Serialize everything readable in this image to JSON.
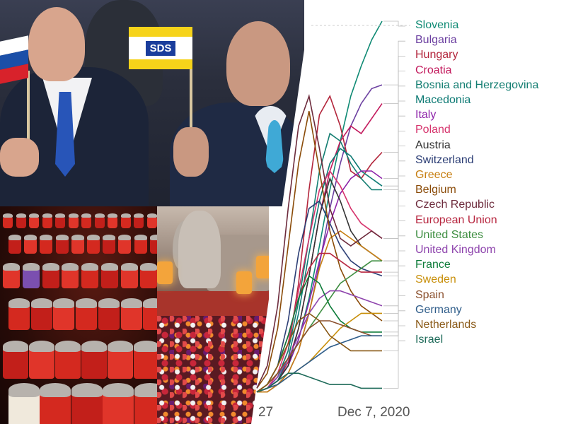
{
  "photo_top": {
    "flag_text": "SDS",
    "colors": {
      "slovenia_white": "#ffffff",
      "slovenia_blue": "#1b4fa8",
      "slovenia_red": "#d8222b",
      "sds_yellow": "#f6d31a",
      "sds_blue": "#1a3d9c"
    }
  },
  "photo_candles": {
    "colors": {
      "glass": "#d4291f",
      "lid": "#b7b2ad"
    }
  },
  "photo_cemetery": {
    "colors": {
      "wall": "#a8342b",
      "lantern": "#f3a43b"
    }
  },
  "chart_data": {
    "type": "line",
    "title": "",
    "xlabel": "",
    "ylabel": "",
    "x_tick_labels": [
      "27",
      "Dec 7, 2020"
    ],
    "grid": false,
    "legend_placement": "right (labels at line ends)",
    "series": [
      {
        "name": "Slovenia",
        "color": "#0f8a74",
        "values": [
          1,
          2,
          4,
          8,
          15,
          26,
          40,
          55,
          68,
          80,
          88,
          95,
          100
        ]
      },
      {
        "name": "Bulgaria",
        "color": "#6b3fa0",
        "values": [
          1,
          1,
          3,
          6,
          12,
          22,
          35,
          50,
          62,
          72,
          78,
          82,
          83
        ]
      },
      {
        "name": "Hungary",
        "color": "#b3263c",
        "values": [
          1,
          2,
          5,
          12,
          30,
          55,
          75,
          80,
          72,
          60,
          58,
          62,
          65
        ]
      },
      {
        "name": "Croatia",
        "color": "#c2185b",
        "values": [
          1,
          2,
          4,
          9,
          18,
          32,
          48,
          60,
          68,
          72,
          70,
          74,
          78
        ]
      },
      {
        "name": "Bosnia and Herzegovina",
        "color": "#147e72",
        "values": [
          1,
          2,
          5,
          12,
          25,
          42,
          60,
          70,
          68,
          62,
          58,
          55,
          55
        ]
      },
      {
        "name": "Macedonia",
        "color": "#0d7a74",
        "values": [
          1,
          2,
          4,
          10,
          22,
          38,
          52,
          62,
          66,
          64,
          60,
          58,
          56
        ]
      },
      {
        "name": "Italy",
        "color": "#8e24aa",
        "values": [
          1,
          2,
          4,
          8,
          15,
          25,
          36,
          46,
          54,
          58,
          60,
          60,
          58
        ]
      },
      {
        "name": "Poland",
        "color": "#d6336c",
        "values": [
          1,
          2,
          6,
          14,
          28,
          42,
          55,
          60,
          56,
          50,
          46,
          44,
          42
        ]
      },
      {
        "name": "Austria",
        "color": "#333333",
        "values": [
          1,
          2,
          4,
          8,
          18,
          32,
          48,
          58,
          52,
          44,
          40,
          38,
          36
        ]
      },
      {
        "name": "Switzerland",
        "color": "#2c3e75",
        "values": [
          1,
          3,
          8,
          20,
          38,
          50,
          52,
          46,
          40,
          36,
          34,
          33,
          32
        ]
      },
      {
        "name": "Greece",
        "color": "#c77f12",
        "values": [
          1,
          1,
          3,
          6,
          12,
          22,
          34,
          42,
          44,
          42,
          40,
          38,
          36
        ]
      },
      {
        "name": "Belgium",
        "color": "#8a4b08",
        "values": [
          2,
          6,
          18,
          40,
          62,
          76,
          60,
          44,
          34,
          28,
          24,
          22,
          20
        ]
      },
      {
        "name": "Czech Republic",
        "color": "#6d2b3c",
        "values": [
          2,
          8,
          24,
          50,
          72,
          80,
          66,
          50,
          42,
          40,
          42,
          44,
          42
        ]
      },
      {
        "name": "European Union",
        "color": "#b7263f",
        "values": [
          1,
          3,
          8,
          16,
          26,
          34,
          38,
          38,
          36,
          34,
          33,
          33,
          33
        ]
      },
      {
        "name": "United States",
        "color": "#3e8e41",
        "values": [
          1,
          3,
          6,
          10,
          14,
          18,
          22,
          26,
          30,
          32,
          34,
          36,
          36
        ]
      },
      {
        "name": "United Kingdom",
        "color": "#8e44ad",
        "values": [
          1,
          2,
          5,
          10,
          16,
          22,
          26,
          28,
          28,
          27,
          26,
          25,
          24
        ]
      },
      {
        "name": "France",
        "color": "#0e7c3a",
        "values": [
          1,
          3,
          8,
          16,
          26,
          32,
          30,
          24,
          20,
          18,
          17,
          17,
          17
        ]
      },
      {
        "name": "Sweden",
        "color": "#c88f0a",
        "values": [
          1,
          2,
          3,
          5,
          7,
          9,
          12,
          15,
          18,
          20,
          22,
          22,
          22
        ]
      },
      {
        "name": "Spain",
        "color": "#8a4f2c",
        "values": [
          1,
          3,
          6,
          10,
          14,
          18,
          20,
          20,
          19,
          18,
          17,
          16,
          16
        ]
      },
      {
        "name": "Germany",
        "color": "#2f5d8a",
        "values": [
          1,
          2,
          3,
          5,
          7,
          9,
          11,
          13,
          14,
          15,
          16,
          16,
          16
        ]
      },
      {
        "name": "Netherlands",
        "color": "#8a5a18",
        "values": [
          1,
          3,
          8,
          14,
          20,
          22,
          20,
          16,
          14,
          12,
          12,
          12,
          12
        ]
      },
      {
        "name": "Israel",
        "color": "#1f6b5a",
        "values": [
          1,
          2,
          4,
          6,
          6,
          5,
          4,
          3,
          3,
          3,
          2,
          2,
          2
        ]
      }
    ]
  }
}
